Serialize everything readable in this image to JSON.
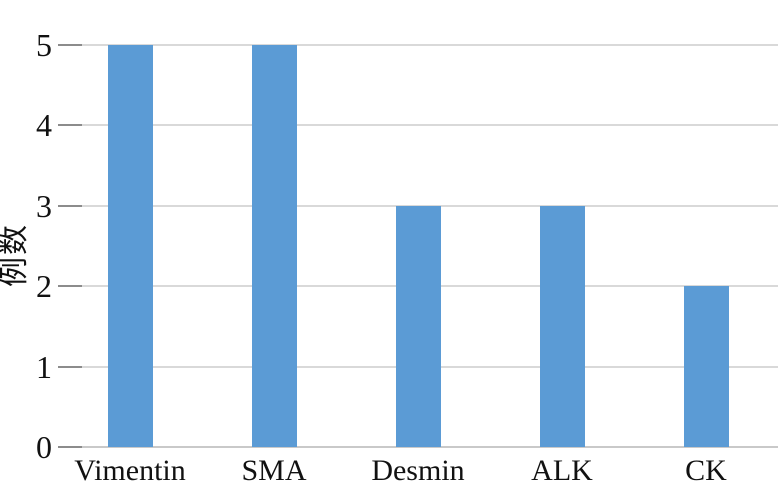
{
  "chart_data": {
    "type": "bar",
    "categories": [
      "Vimentin",
      "SMA",
      "Desmin",
      "ALK",
      "CK"
    ],
    "values": [
      5,
      5,
      3,
      3,
      2
    ],
    "title": "",
    "xlabel": "",
    "ylabel": "例数",
    "ylim": [
      0,
      5
    ],
    "yticks": [
      0,
      1,
      2,
      3,
      4,
      5
    ],
    "grid": true,
    "legend": "none",
    "bar_color": "#5B9BD5",
    "gridline_color": "#d9d9d9",
    "baseline_color": "#c9c9c9",
    "tick_color": "#8c8c8c",
    "text_color": "#111111",
    "background_color": "#ffffff"
  }
}
